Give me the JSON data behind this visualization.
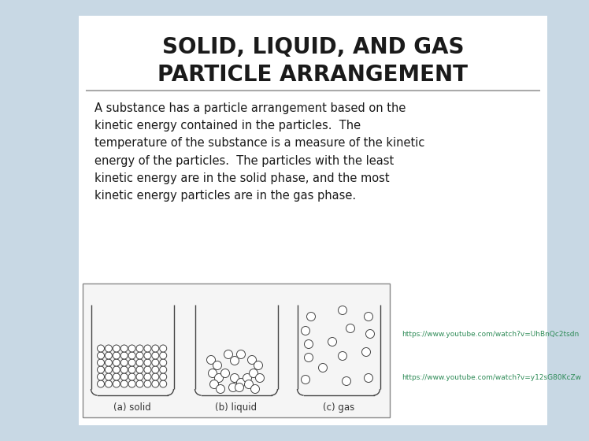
{
  "title_line1": "SOLID, LIQUID, AND GAS",
  "title_line2": "PARTICLE ARRANGEMENT",
  "body_text": "A substance has a particle arrangement based on the\nkinetic energy contained in the particles.  The\ntemperature of the substance is a measure of the kinetic\nenergy of the particles.  The particles with the least\nkinetic energy are in the solid phase, and the most\nkinetic energy particles are in the gas phase.",
  "link1": "https://www.youtube.com/watch?v=UhBnQc2tsdn",
  "link2": "https://www.youtube.com/watch?v=y12sG80KcZw",
  "bg_color": "#c8d8e4",
  "panel_color": "#ffffff",
  "title_color": "#1a1a1a",
  "body_color": "#1a1a1a",
  "link_color": "#2e8b57",
  "label_solid": "(a) solid",
  "label_liquid": "(b) liquid",
  "label_gas": "(c) gas",
  "title_fontsize": 20,
  "body_fontsize": 10.5,
  "link_fontsize": 6.5
}
